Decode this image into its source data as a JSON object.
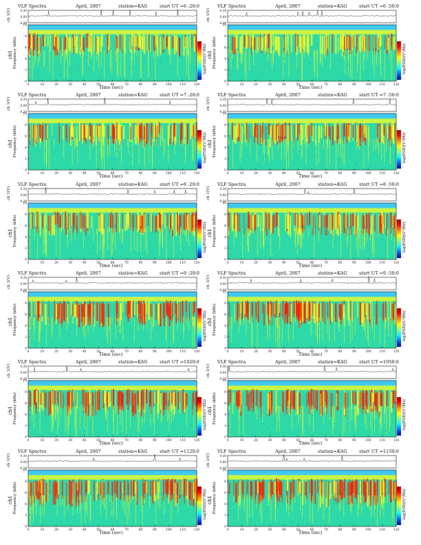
{
  "panels": [
    {
      "title": "VLF Spectra",
      "date": "April, 2007",
      "station": "station=KAG",
      "start": "start  UT  =6 :20:0"
    },
    {
      "title": "VLF Spectra",
      "date": "April, 2007",
      "station": "station=KAG",
      "start": "start  UT  =6 :50:0"
    },
    {
      "title": "VLF Spectra",
      "date": "April, 2007",
      "station": "station=KAG",
      "start": "start  UT  =7 :20:0"
    },
    {
      "title": "VLF Spectra",
      "date": "April, 2007",
      "station": "station=KAG",
      "start": "start  UT  =7 :50:0"
    },
    {
      "title": "VLF Spectra",
      "date": "April, 2007",
      "station": "station=KAG",
      "start": "start  UT  =8 :20:0"
    },
    {
      "title": "VLF Spectra",
      "date": "April, 2007",
      "station": "station=KAG",
      "start": "start  UT  =8 :50:0"
    },
    {
      "title": "VLF Spectra",
      "date": "April, 2007",
      "station": "station=KAG",
      "start": "start  UT  =9 :20:0"
    },
    {
      "title": "VLF Spectra",
      "date": "April, 2007",
      "station": "station=KAG",
      "start": "start  UT  =9 :50:0"
    },
    {
      "title": "VLF Spectra",
      "date": "April, 2007",
      "station": "station=KAG",
      "start": "start  UT  =1020:0"
    },
    {
      "title": "VLF Spectra",
      "date": "April, 2007",
      "station": "station=KAG",
      "start": "start  UT  =1050:0"
    },
    {
      "title": "VLF Spectra",
      "date": "April, 2007",
      "station": "station=KAG",
      "start": "start  UT  =1120:0"
    },
    {
      "title": "VLF Spectra",
      "date": "April, 2007",
      "station": "station=KAG",
      "start": "start  UT  =1150:0"
    }
  ],
  "labels": {
    "ch_axis": "ch 1(V)",
    "freq_axis_prefix": "ch1",
    "freq_axis": "Frequency  (kHz)",
    "colorbar_label": "log(PSD)(V²/Hz)",
    "colorbar_tick": "-",
    "xlabel": "Time  (sec)"
  },
  "chart_data": {
    "type": "heatmap",
    "panel_count": 12,
    "layout": "6 rows x 2 columns",
    "x_ticks": [
      "0",
      "10",
      "20",
      "30",
      "40",
      "50",
      "60",
      "70",
      "80",
      "90",
      "100",
      "110",
      "120"
    ],
    "xlim": [
      0,
      120
    ],
    "y_ticks": [
      "0",
      "2",
      "4",
      "6",
      "8",
      "10"
    ],
    "ylim": [
      0,
      10
    ],
    "ch_ticks": [
      "0.30",
      "0.00",
      "-0.30"
    ],
    "ch_lim": [
      -0.3,
      0.3
    ],
    "colormap": [
      "#00008b",
      "#0070ff",
      "#00ffff",
      "#7fff7f",
      "#ffff00",
      "#ff8c00",
      "#ff0000",
      "#a00000"
    ],
    "colors": {
      "band_top": "#3fc8f0",
      "background": "#2ed9a8",
      "intense": "#ff1a00",
      "moderate": "#ffff22"
    }
  }
}
